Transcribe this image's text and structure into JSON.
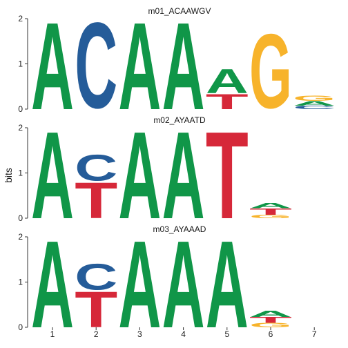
{
  "chart_data": {
    "type": "sequence-logo",
    "ylabel": "bits",
    "x_ticks": [
      "1",
      "2",
      "3",
      "4",
      "5",
      "6",
      "7"
    ],
    "y_ticks": [
      "0",
      "1",
      "2"
    ],
    "ylim": [
      0,
      2
    ],
    "colors": {
      "A": "#109648",
      "C": "#255C99",
      "G": "#F7B32B",
      "T": "#D62839"
    },
    "panels": [
      {
        "title": "m01_ACAAWGV",
        "positions": [
          [
            {
              "l": "A",
              "h": 1.98
            }
          ],
          [
            {
              "l": "C",
              "h": 1.98
            }
          ],
          [
            {
              "l": "A",
              "h": 1.98
            }
          ],
          [
            {
              "l": "A",
              "h": 1.98
            }
          ],
          [
            {
              "l": "T",
              "h": 0.35
            },
            {
              "l": "A",
              "h": 0.55
            }
          ],
          [
            {
              "l": "G",
              "h": 1.72
            }
          ],
          [
            {
              "l": "C",
              "h": 0.08
            },
            {
              "l": "A",
              "h": 0.1
            },
            {
              "l": "G",
              "h": 0.12
            }
          ]
        ]
      },
      {
        "title": "m02_AYAATD",
        "positions": [
          [
            {
              "l": "A",
              "h": 1.98
            }
          ],
          [
            {
              "l": "T",
              "h": 0.82
            },
            {
              "l": "C",
              "h": 0.6
            }
          ],
          [
            {
              "l": "A",
              "h": 1.98
            }
          ],
          [
            {
              "l": "A",
              "h": 1.98
            }
          ],
          [
            {
              "l": "T",
              "h": 1.98
            }
          ],
          [
            {
              "l": "G",
              "h": 0.08
            },
            {
              "l": "T",
              "h": 0.14
            },
            {
              "l": "A",
              "h": 0.12
            }
          ],
          []
        ]
      },
      {
        "title": "m03_AYAAAD",
        "positions": [
          [
            {
              "l": "A",
              "h": 1.98
            }
          ],
          [
            {
              "l": "T",
              "h": 0.82
            },
            {
              "l": "C",
              "h": 0.6
            }
          ],
          [
            {
              "l": "A",
              "h": 1.98
            }
          ],
          [
            {
              "l": "A",
              "h": 1.98
            }
          ],
          [
            {
              "l": "A",
              "h": 1.98
            }
          ],
          [
            {
              "l": "G",
              "h": 0.1
            },
            {
              "l": "T",
              "h": 0.13
            },
            {
              "l": "A",
              "h": 0.14
            }
          ],
          []
        ]
      }
    ]
  }
}
